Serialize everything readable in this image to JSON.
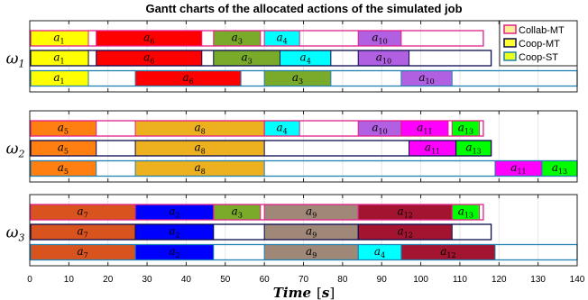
{
  "chart_data": {
    "type": "gantt",
    "title": "Gantt charts of the allocated actions of the simulated job",
    "xlabel": "Time",
    "xlabel_unit": "s",
    "xlim": [
      0,
      140
    ],
    "xticks": [
      0,
      10,
      20,
      30,
      40,
      50,
      60,
      70,
      80,
      90,
      100,
      110,
      120,
      130,
      140
    ],
    "grid": true,
    "legend_position": "top-right",
    "legend": [
      {
        "name": "Collab-MT",
        "fill": "#ffee99",
        "edge": "#e0208a"
      },
      {
        "name": "Coop-MT",
        "fill": "#ffff33",
        "edge": "#0a0a50"
      },
      {
        "name": "Coop-ST",
        "fill": "#e8ff20",
        "edge": "#2080b0"
      }
    ],
    "action_colors": {
      "a1": "#ffff00",
      "a5": "#ff8010",
      "a6": "#ff0000",
      "a3": "#7aaa2a",
      "a4": "#00ffff",
      "a7": "#d9531e",
      "a8": "#edb120",
      "a9": "#a08878",
      "a10": "#b060e0",
      "a11": "#ff00ff",
      "a12": "#a2142f",
      "a13": "#00ff00",
      "a2": "#0000ff"
    },
    "series_edges": {
      "Collab-MT": "#e0208a",
      "Coop-MT": "#0a0a50",
      "Coop-ST": "#2080b0"
    },
    "panels": [
      {
        "label_main": "ω",
        "label_sub": "1",
        "rows": [
          {
            "series": "Collab-MT",
            "end": 116,
            "segments": [
              {
                "action": "a1",
                "sub": "1",
                "start": 0,
                "end": 15
              },
              {
                "action": "a6",
                "sub": "6",
                "start": 17,
                "end": 44
              },
              {
                "action": "a3",
                "sub": "3",
                "start": 47,
                "end": 59
              },
              {
                "action": "a4",
                "sub": "4",
                "start": 60,
                "end": 69
              },
              {
                "action": "a10",
                "sub": "10",
                "start": 84,
                "end": 95
              }
            ]
          },
          {
            "series": "Coop-MT",
            "end": 118,
            "segments": [
              {
                "action": "a1",
                "sub": "1",
                "start": 0,
                "end": 15
              },
              {
                "action": "a6",
                "sub": "6",
                "start": 17,
                "end": 44
              },
              {
                "action": "a3",
                "sub": "3",
                "start": 47,
                "end": 64
              },
              {
                "action": "a4",
                "sub": "4",
                "start": 64,
                "end": 77
              },
              {
                "action": "a10",
                "sub": "10",
                "start": 84,
                "end": 97
              }
            ]
          },
          {
            "series": "Coop-ST",
            "end": 140,
            "segments": [
              {
                "action": "a1",
                "sub": "1",
                "start": 0,
                "end": 15
              },
              {
                "action": "a6",
                "sub": "6",
                "start": 27,
                "end": 54
              },
              {
                "action": "a3",
                "sub": "3",
                "start": 60,
                "end": 77
              },
              {
                "action": "a10",
                "sub": "10",
                "start": 95,
                "end": 108
              }
            ]
          }
        ]
      },
      {
        "label_main": "ω",
        "label_sub": "2",
        "rows": [
          {
            "series": "Collab-MT",
            "end": 116,
            "segments": [
              {
                "action": "a5",
                "sub": "5",
                "start": 0,
                "end": 17
              },
              {
                "action": "a8",
                "sub": "8",
                "start": 27,
                "end": 60
              },
              {
                "action": "a4",
                "sub": "4",
                "start": 60,
                "end": 69
              },
              {
                "action": "a10",
                "sub": "10",
                "start": 84,
                "end": 95
              },
              {
                "action": "a11",
                "sub": "11",
                "start": 95,
                "end": 107
              },
              {
                "action": "a13",
                "sub": "13",
                "start": 108,
                "end": 115
              }
            ]
          },
          {
            "series": "Coop-MT",
            "end": 118,
            "segments": [
              {
                "action": "a5",
                "sub": "5",
                "start": 0,
                "end": 17
              },
              {
                "action": "a8",
                "sub": "8",
                "start": 27,
                "end": 60
              },
              {
                "action": "a11",
                "sub": "11",
                "start": 97,
                "end": 109
              },
              {
                "action": "a13",
                "sub": "13",
                "start": 109,
                "end": 118
              }
            ]
          },
          {
            "series": "Coop-ST",
            "end": 140,
            "segments": [
              {
                "action": "a5",
                "sub": "5",
                "start": 0,
                "end": 17
              },
              {
                "action": "a8",
                "sub": "8",
                "start": 27,
                "end": 60
              },
              {
                "action": "a11",
                "sub": "11",
                "start": 119,
                "end": 131
              },
              {
                "action": "a13",
                "sub": "13",
                "start": 131,
                "end": 140
              }
            ]
          }
        ]
      },
      {
        "label_main": "ω",
        "label_sub": "3",
        "rows": [
          {
            "series": "Collab-MT",
            "end": 116,
            "segments": [
              {
                "action": "a7",
                "sub": "7",
                "start": 0,
                "end": 27
              },
              {
                "action": "a2",
                "sub": "2",
                "start": 27,
                "end": 47
              },
              {
                "action": "a3",
                "sub": "3",
                "start": 47,
                "end": 59
              },
              {
                "action": "a9",
                "sub": "9",
                "start": 60,
                "end": 84
              },
              {
                "action": "a12",
                "sub": "12",
                "start": 84,
                "end": 108
              },
              {
                "action": "a13",
                "sub": "13",
                "start": 108,
                "end": 115
              }
            ]
          },
          {
            "series": "Coop-MT",
            "end": 118,
            "segments": [
              {
                "action": "a7",
                "sub": "7",
                "start": 0,
                "end": 27
              },
              {
                "action": "a2",
                "sub": "2",
                "start": 27,
                "end": 47
              },
              {
                "action": "a9",
                "sub": "9",
                "start": 60,
                "end": 84
              },
              {
                "action": "a12",
                "sub": "12",
                "start": 84,
                "end": 108
              }
            ]
          },
          {
            "series": "Coop-ST",
            "end": 140,
            "segments": [
              {
                "action": "a7",
                "sub": "7",
                "start": 0,
                "end": 27
              },
              {
                "action": "a2",
                "sub": "2",
                "start": 27,
                "end": 47
              },
              {
                "action": "a9",
                "sub": "9",
                "start": 60,
                "end": 84
              },
              {
                "action": "a4",
                "sub": "4",
                "start": 84,
                "end": 95
              },
              {
                "action": "a12",
                "sub": "12",
                "start": 95,
                "end": 119
              }
            ]
          }
        ]
      }
    ]
  }
}
